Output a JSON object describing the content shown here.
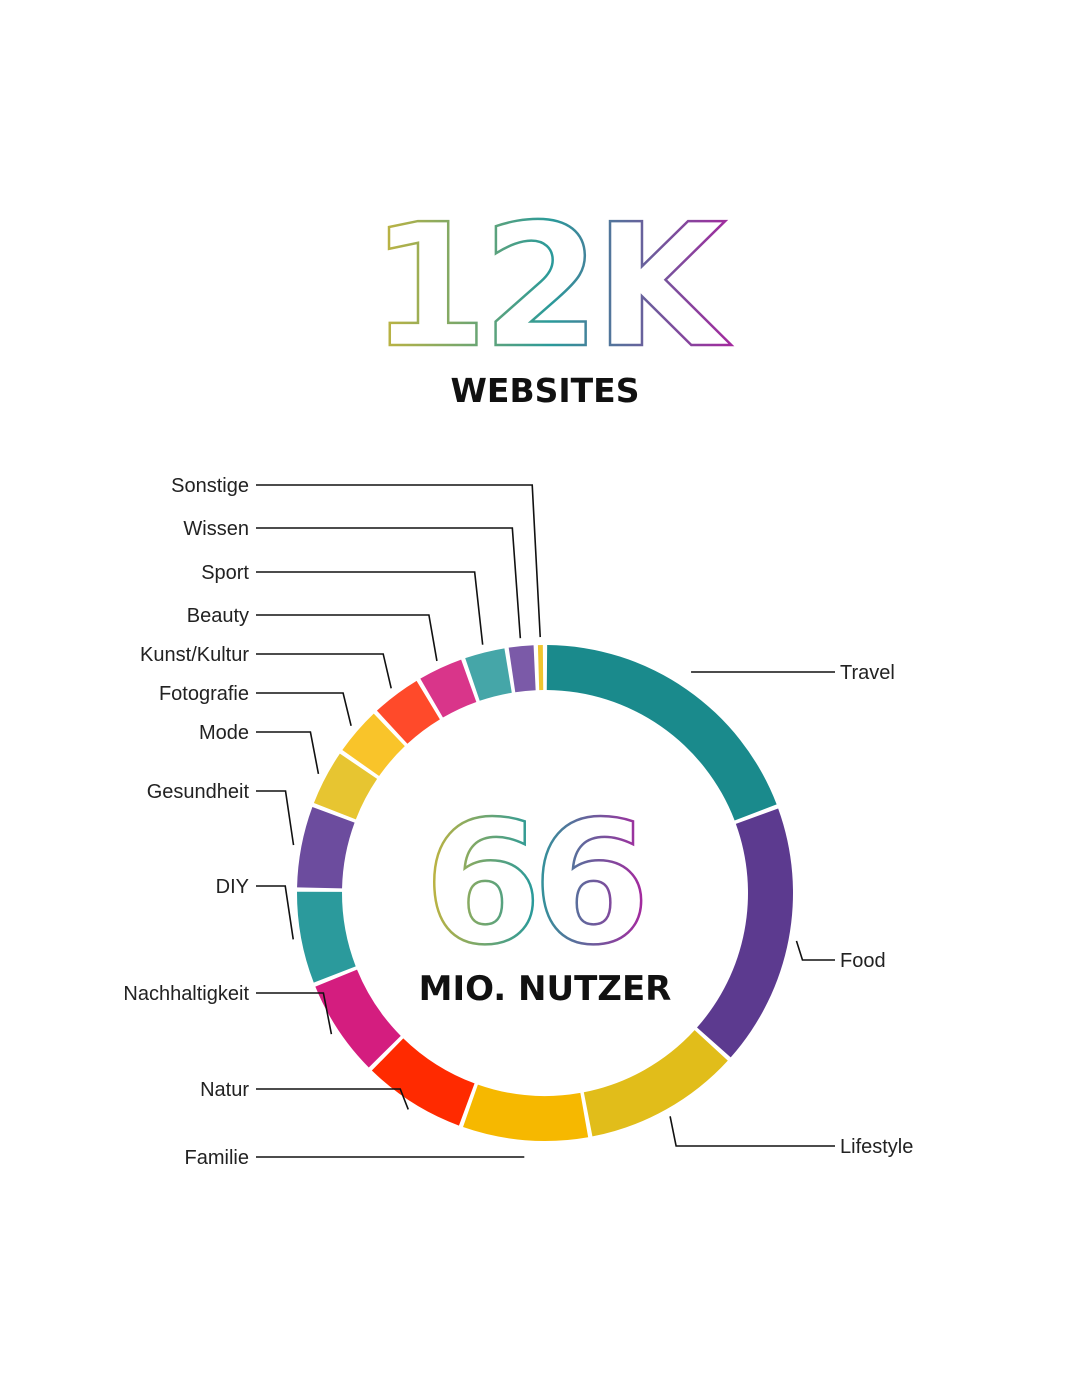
{
  "headline": {
    "value": "12K",
    "caption": "WEBSITES"
  },
  "center": {
    "value": "66",
    "caption": "MIO. NUTZER"
  },
  "gradient_colors": [
    "#c9b53a",
    "#2a9a9a",
    "#a32a9e"
  ],
  "chart_data": {
    "type": "pie",
    "variant": "donut",
    "values_note": "estimated share of ring (percent)",
    "categories": [
      "Travel",
      "Food",
      "Lifestyle",
      "Familie",
      "Natur",
      "Nachhaltigkeit",
      "DIY",
      "Gesundheit",
      "Mode",
      "Fotografie",
      "Kunst/Kultur",
      "Beauty",
      "Sport",
      "Wissen",
      "Sonstige"
    ],
    "values": [
      19.5,
      17.5,
      10.5,
      8.5,
      7.0,
      6.6,
      6.3,
      5.6,
      3.9,
      3.4,
      3.5,
      3.2,
      2.9,
      1.9,
      0.6
    ],
    "colors": [
      "#1a8a8c",
      "#5c3a8f",
      "#e1bd1a",
      "#f6b800",
      "#ff2a00",
      "#d41d7f",
      "#2b9a9c",
      "#6c4c9e",
      "#e7c531",
      "#f9c42a",
      "#ff4a2a",
      "#d9358a",
      "#45a6a8",
      "#7b5aa8",
      "#f0c52e"
    ]
  }
}
